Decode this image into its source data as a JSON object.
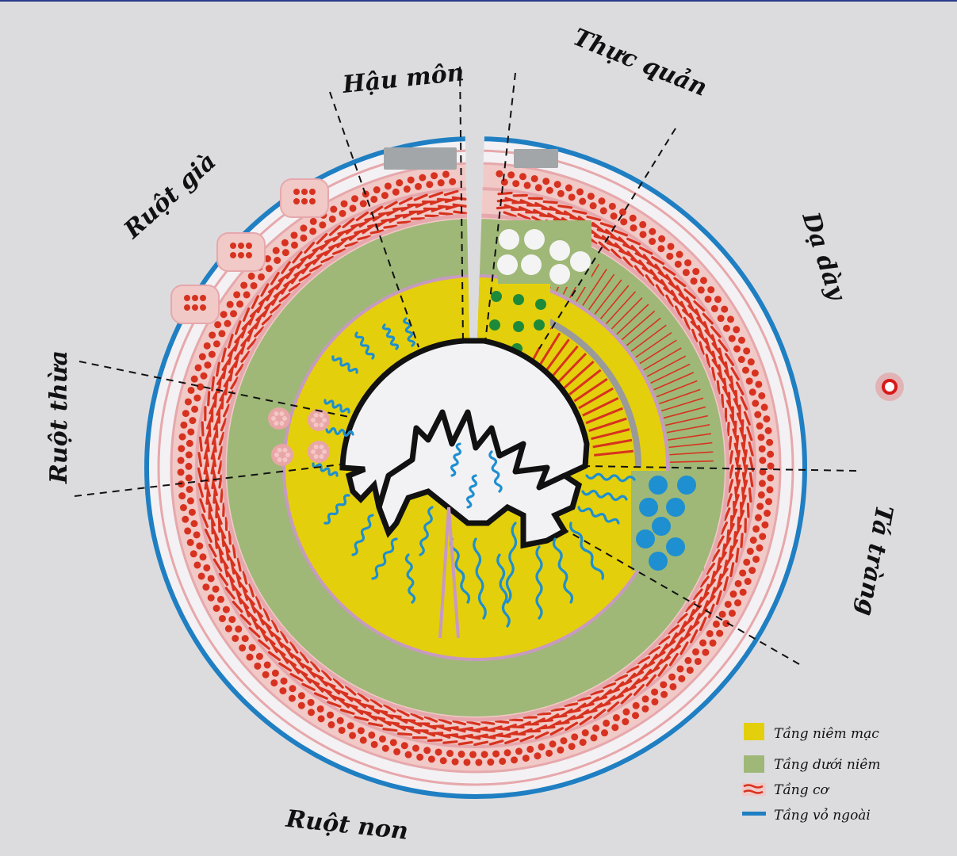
{
  "segments": {
    "hau_mon": "Hậu môn",
    "thuc_quan": "Thực quản",
    "ruot_gia": "Ruột già",
    "da_day": "Dạ dày",
    "ruot_thua": "Ruột thừa",
    "ta_trang": "Tá tràng",
    "ruot_non": "Ruột non"
  },
  "legend": [
    {
      "label": "Tầng niêm mạc",
      "color": "#e3cf0c",
      "kind": "mucosa-swatch"
    },
    {
      "label": "Tầng dưới niêm",
      "color": "#9fb877",
      "kind": "submucosa-swatch"
    },
    {
      "label": "Tầng cơ",
      "color": "#d7321f",
      "kind": "muscle-swatch"
    },
    {
      "label": "Tầng vỏ ngoài",
      "color": "#1f7fc2",
      "kind": "serosa-swatch"
    }
  ],
  "colors": {
    "mucosa": "#e3cf0c",
    "submucosa": "#9fb877",
    "muscle": "#d7321f",
    "muscle_bg": "#f1c9c7",
    "serosa": "#1f7fc2",
    "glands": "#1e8fd0",
    "stomach_glands": "#1d8a3a",
    "background": "#dcdcdf"
  }
}
